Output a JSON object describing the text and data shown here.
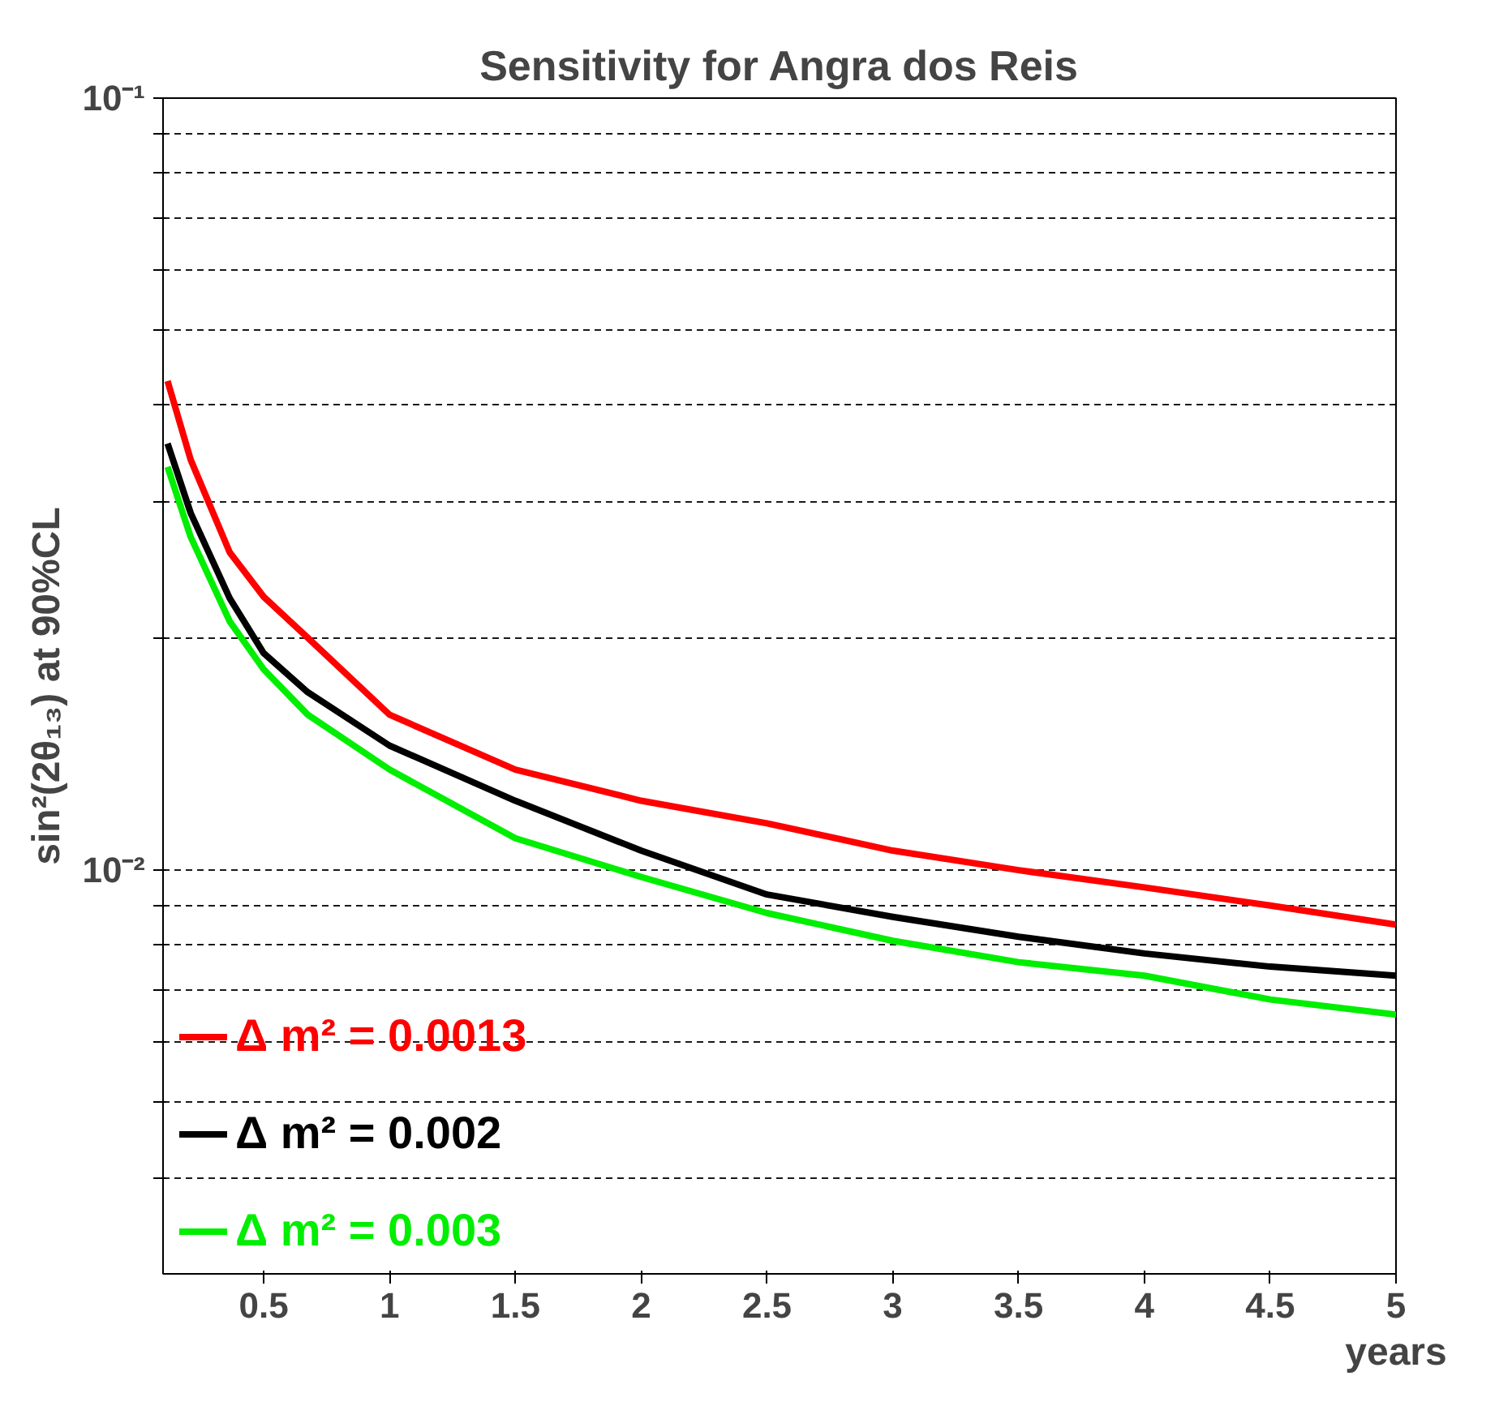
{
  "chart_data": {
    "type": "line",
    "title": "Sensitivity for Angra dos Reis",
    "xlabel": "years",
    "ylabel": "sin²(2θ₁₃) at 90%CL",
    "x": [
      0.118,
      0.21,
      0.365,
      0.5,
      0.675,
      1.0,
      1.5,
      2.0,
      2.5,
      3.0,
      3.5,
      4.0,
      4.5,
      5.0
    ],
    "series": [
      {
        "name": "Δ m² = 0.0013",
        "color": "#ff0000",
        "values": [
          0.043,
          0.034,
          0.0258,
          0.0226,
          0.02,
          0.0159,
          0.0135,
          0.0123,
          0.0115,
          0.0106,
          0.01,
          0.0095,
          0.009,
          0.0085
        ]
      },
      {
        "name": "Δ m² = 0.002",
        "color": "#000000",
        "values": [
          0.0357,
          0.029,
          0.0225,
          0.0191,
          0.017,
          0.0145,
          0.0123,
          0.0106,
          0.0093,
          0.0087,
          0.0082,
          0.0078,
          0.0075,
          0.0073
        ]
      },
      {
        "name": "Δ m² = 0.003",
        "color": "#00ee00",
        "values": [
          0.0333,
          0.027,
          0.021,
          0.0182,
          0.0159,
          0.0135,
          0.011,
          0.0098,
          0.0088,
          0.0081,
          0.0076,
          0.0073,
          0.0068,
          0.0065
        ]
      }
    ],
    "xlim": [
      0.1,
      5
    ],
    "ylim": [
      0.003,
      0.1
    ],
    "xticks": [
      0.5,
      1,
      1.5,
      2,
      2.5,
      3,
      3.5,
      4,
      4.5,
      5
    ],
    "yticks": [
      {
        "value": 0.004,
        "label": null
      },
      {
        "value": 0.005,
        "label": null
      },
      {
        "value": 0.006,
        "label": null
      },
      {
        "value": 0.007,
        "label": null
      },
      {
        "value": 0.008,
        "label": null
      },
      {
        "value": 0.009,
        "label": null
      },
      {
        "value": 0.01,
        "label": "10⁻²"
      },
      {
        "value": 0.02,
        "label": null
      },
      {
        "value": 0.03,
        "label": null
      },
      {
        "value": 0.04,
        "label": null
      },
      {
        "value": 0.05,
        "label": null
      },
      {
        "value": 0.06,
        "label": null
      },
      {
        "value": 0.07,
        "label": null
      },
      {
        "value": 0.08,
        "label": null
      },
      {
        "value": 0.09,
        "label": null
      },
      {
        "value": 0.1,
        "label": "10⁻¹"
      }
    ],
    "log": "y",
    "grid": "y",
    "legend": "bottom left",
    "line_style": "solid",
    "marker": "none"
  }
}
